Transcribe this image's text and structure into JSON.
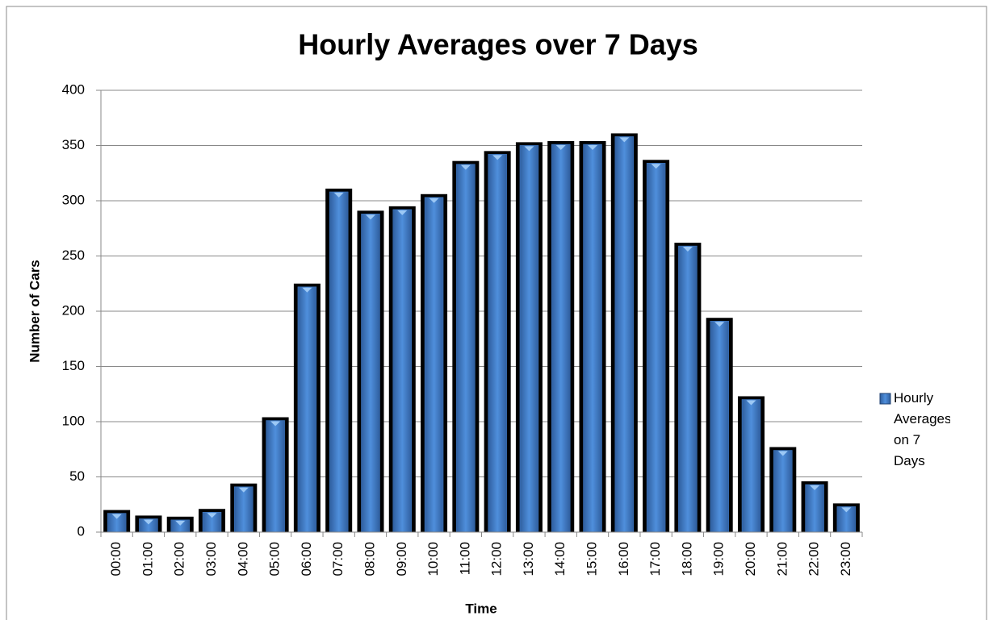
{
  "chart_data": {
    "type": "bar",
    "title": "Hourly Averages over 7 Days",
    "x_label": "Time",
    "y_label": "Number of Cars",
    "categories": [
      "00:00",
      "01:00",
      "02:00",
      "03:00",
      "04:00",
      "05:00",
      "06:00",
      "07:00",
      "08:00",
      "09:00",
      "10:00",
      "11:00",
      "12:00",
      "13:00",
      "14:00",
      "15:00",
      "16:00",
      "17:00",
      "18:00",
      "19:00",
      "20:00",
      "21:00",
      "22:00",
      "23:00"
    ],
    "series": [
      {
        "name": "Hourly Averages on 7 Days",
        "color": "#3f7ac4",
        "values": [
          20,
          15,
          14,
          21,
          44,
          104,
          225,
          311,
          291,
          295,
          306,
          336,
          345,
          353,
          354,
          354,
          361,
          337,
          262,
          194,
          123,
          77,
          46,
          26
        ]
      }
    ],
    "ylim": [
      0,
      400
    ],
    "yticks": [
      0,
      50,
      100,
      150,
      200,
      250,
      300,
      350,
      400
    ],
    "grid": true,
    "legend": "right"
  }
}
